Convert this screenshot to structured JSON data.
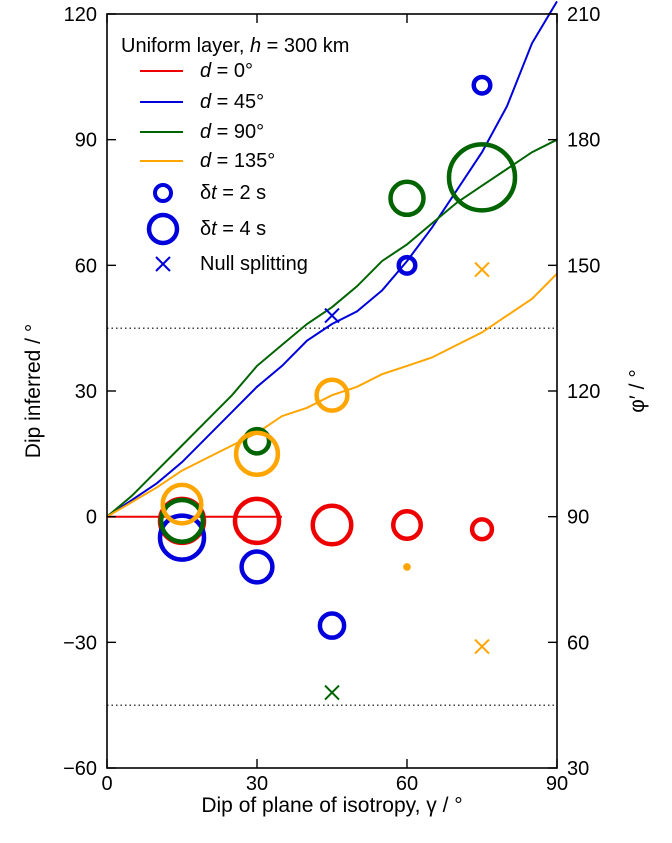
{
  "chart_data": {
    "type": "scatter",
    "title": "",
    "xlabel": "Dip of plane of isotropy, γ / °",
    "ylabel_left": "Dip inferred / °",
    "ylabel_right": "φ′ / °",
    "xlim": [
      0,
      90
    ],
    "ylim_left": [
      -60,
      120
    ],
    "ylim_right": [
      30,
      210
    ],
    "x_ticks": [
      "0",
      "30",
      "60",
      "90"
    ],
    "y_ticks_left": [
      "−60",
      "−30",
      "0",
      "30",
      "60",
      "90",
      "120"
    ],
    "y_ticks_right": [
      "30",
      "60",
      "90",
      "120",
      "150",
      "180",
      "210"
    ],
    "reference_lines": [
      45,
      -45
    ],
    "grid": false,
    "legend": {
      "location": "top-left",
      "title_prefix": "Uniform layer, ",
      "title_var": "h",
      "title_suffix": " = 300 km",
      "entries": [
        {
          "var": "d",
          "text": " = 0°",
          "color": "#ee0000",
          "kind": "line"
        },
        {
          "var": "d",
          "text": " = 45°",
          "color": "#0000dd",
          "kind": "line"
        },
        {
          "var": "d",
          "text": " = 90°",
          "color": "#006400",
          "kind": "line"
        },
        {
          "var": "d",
          "text": " = 135°",
          "color": "#ffa500",
          "kind": "line"
        },
        {
          "prefix": "δ",
          "var": "t",
          "text": " = 2 s",
          "color": "#0000dd",
          "kind": "circle_small"
        },
        {
          "prefix": "δ",
          "var": "t",
          "text": " = 4 s",
          "color": "#0000dd",
          "kind": "circle_large"
        },
        {
          "text": "Null splitting",
          "color": "#0000dd",
          "kind": "cross"
        }
      ]
    },
    "series": [
      {
        "name": "d = 0°",
        "color": "#ee0000",
        "line": [
          [
            0,
            0
          ],
          [
            35,
            0
          ]
        ],
        "points": [
          [
            15,
            -1,
            4.0
          ],
          [
            30,
            -1,
            4.0
          ],
          [
            45,
            -2,
            3.5
          ],
          [
            60,
            -2,
            2.5
          ],
          [
            75,
            -3,
            1.8
          ]
        ],
        "nulls": []
      },
      {
        "name": "d = 45°",
        "color": "#0000dd",
        "line": [
          [
            0,
            0
          ],
          [
            10,
            8
          ],
          [
            15,
            13
          ],
          [
            20,
            19
          ],
          [
            25,
            25
          ],
          [
            30,
            31
          ],
          [
            35,
            36
          ],
          [
            40,
            42
          ],
          [
            45,
            46
          ],
          [
            50,
            49
          ],
          [
            55,
            54
          ],
          [
            60,
            61
          ],
          [
            65,
            69
          ],
          [
            70,
            78
          ],
          [
            75,
            87
          ],
          [
            80,
            98
          ],
          [
            85,
            113
          ],
          [
            90,
            123
          ]
        ],
        "points": [
          [
            15,
            -5,
            4.0
          ],
          [
            30,
            -12,
            2.8
          ],
          [
            45,
            -26,
            2.2
          ],
          [
            60,
            60,
            1.5
          ],
          [
            75,
            103,
            1.5
          ]
        ],
        "nulls": [
          [
            45,
            48
          ]
        ]
      },
      {
        "name": "d = 90°",
        "color": "#006400",
        "line": [
          [
            0,
            0
          ],
          [
            5,
            5
          ],
          [
            10,
            11
          ],
          [
            15,
            17
          ],
          [
            20,
            23
          ],
          [
            25,
            29
          ],
          [
            30,
            36
          ],
          [
            35,
            41
          ],
          [
            40,
            46
          ],
          [
            45,
            50
          ],
          [
            50,
            55
          ],
          [
            55,
            61
          ],
          [
            60,
            65
          ],
          [
            65,
            70
          ],
          [
            70,
            75
          ],
          [
            75,
            79
          ],
          [
            80,
            83
          ],
          [
            85,
            87
          ],
          [
            90,
            90
          ]
        ],
        "points": [
          [
            15,
            -1,
            3.8
          ],
          [
            30,
            18,
            2.2
          ],
          [
            60,
            76,
            3.0
          ],
          [
            75,
            81,
            6.0
          ]
        ],
        "nulls": [
          [
            45,
            -42
          ]
        ]
      },
      {
        "name": "d = 135°",
        "color": "#ffa500",
        "line": [
          [
            0,
            0
          ],
          [
            5,
            3.5
          ],
          [
            10,
            7
          ],
          [
            15,
            11
          ],
          [
            20,
            14
          ],
          [
            25,
            17
          ],
          [
            30,
            20
          ],
          [
            35,
            24
          ],
          [
            40,
            26
          ],
          [
            45,
            29
          ],
          [
            50,
            31
          ],
          [
            55,
            34
          ],
          [
            60,
            36
          ],
          [
            65,
            38
          ],
          [
            70,
            41
          ],
          [
            75,
            44
          ],
          [
            80,
            48
          ],
          [
            85,
            52
          ],
          [
            90,
            58
          ]
        ],
        "points": [
          [
            15,
            3,
            3.5
          ],
          [
            30,
            15,
            3.8
          ],
          [
            45,
            29,
            2.8
          ],
          [
            60,
            -12,
            0.7
          ]
        ],
        "nulls": [
          [
            75,
            59
          ],
          [
            75,
            -31
          ]
        ]
      }
    ]
  }
}
